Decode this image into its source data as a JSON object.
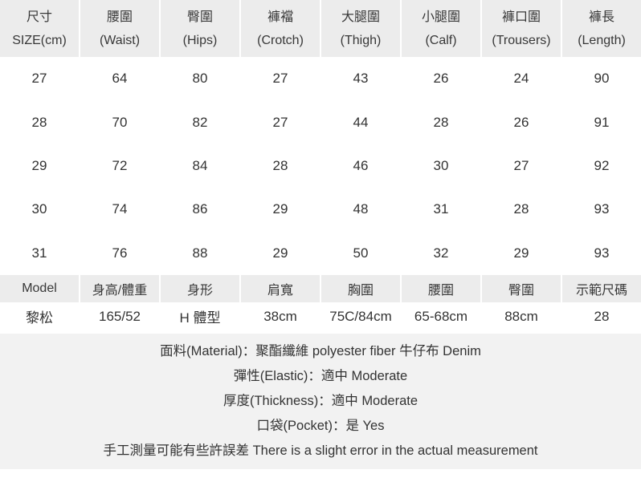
{
  "table": {
    "columns": [
      {
        "zh": "尺寸",
        "en": "SIZE(cm)"
      },
      {
        "zh": "腰圍",
        "en": "(Waist)"
      },
      {
        "zh": "臀圍",
        "en": "(Hips)"
      },
      {
        "zh": "褲襠",
        "en": "(Crotch)"
      },
      {
        "zh": "大腿圍",
        "en": "(Thigh)"
      },
      {
        "zh": "小腿圍",
        "en": "(Calf)"
      },
      {
        "zh": "褲口圍",
        "en": "(Trousers)"
      },
      {
        "zh": "褲長",
        "en": "(Length)"
      }
    ],
    "rows": [
      [
        "27",
        "64",
        "80",
        "27",
        "43",
        "26",
        "24",
        "90"
      ],
      [
        "28",
        "70",
        "82",
        "27",
        "44",
        "28",
        "26",
        "91"
      ],
      [
        "29",
        "72",
        "84",
        "28",
        "46",
        "30",
        "27",
        "92"
      ],
      [
        "30",
        "74",
        "86",
        "29",
        "48",
        "31",
        "28",
        "93"
      ],
      [
        "31",
        "76",
        "88",
        "29",
        "50",
        "32",
        "29",
        "93"
      ]
    ]
  },
  "model": {
    "headers": [
      "Model",
      "身高/體重",
      "身形",
      "肩寬",
      "胸圍",
      "腰圍",
      "臀圍",
      "示範尺碼"
    ],
    "values": [
      "黎松",
      "165/52",
      "H 體型",
      "38cm",
      "75C/84cm",
      "65-68cm",
      "88cm",
      "28"
    ]
  },
  "footer": {
    "lines": [
      "面料(Material)：聚酯纖維 polyester fiber 牛仔布 Denim",
      "彈性(Elastic)：適中 Moderate",
      "厚度(Thickness)：適中 Moderate",
      "口袋(Pocket)：是 Yes",
      "手工測量可能有些許誤差 There is a slight error in the actual measurement"
    ]
  },
  "colors": {
    "header_bg": "#ececec",
    "footer_bg": "#f2f2f2",
    "text": "#333333"
  }
}
